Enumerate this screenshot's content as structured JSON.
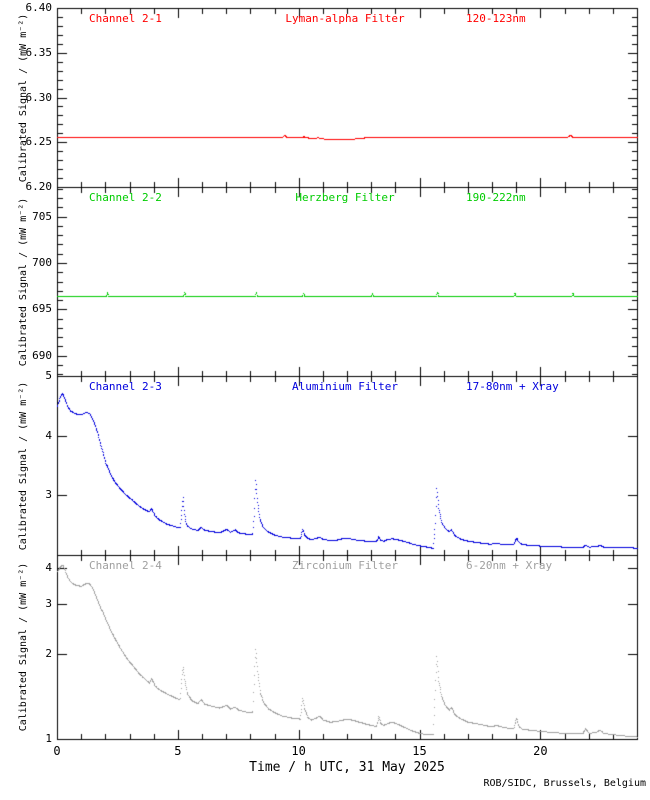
{
  "page": {
    "background": "#ffffff",
    "axis_color": "#000000"
  },
  "credit": "ROB/SIDC, Brussels, Belgium",
  "chart_data": {
    "type": "line",
    "x": {
      "label": "Time / h UTC, 31 May 2025",
      "lim": [
        0,
        24
      ],
      "major_ticks": [
        0,
        5,
        10,
        15,
        20
      ],
      "major_tick_labels": [
        "0",
        "5",
        "10",
        "15",
        "20"
      ],
      "minor_step": 1,
      "grid": false
    },
    "panels": [
      {
        "channel": "Channel 2-1",
        "filter": "Lyman-alpha Filter",
        "band": "120-123nm",
        "color": "#ff0000",
        "ylabel": "Calibrated Signal / (mW m⁻²)",
        "scale": "linear",
        "ylim": [
          6.2,
          6.4
        ],
        "major_ticks": [
          6.2,
          6.25,
          6.3,
          6.35,
          6.4
        ],
        "major_tick_labels": [
          "6.20",
          "6.25",
          "6.30",
          "6.35",
          "6.40"
        ],
        "minor_step": 0.01,
        "series": [
          [
            0,
            6.256
          ],
          [
            9.3,
            6.256
          ],
          [
            9.4,
            6.258
          ],
          [
            9.5,
            6.256
          ],
          [
            9.8,
            6.2555
          ],
          [
            10.2,
            6.2565
          ],
          [
            10.5,
            6.2545
          ],
          [
            10.8,
            6.2555
          ],
          [
            11.05,
            6.254
          ],
          [
            11.3,
            6.2535
          ],
          [
            11.6,
            6.254
          ],
          [
            11.9,
            6.2535
          ],
          [
            12.2,
            6.254
          ],
          [
            12.5,
            6.2545
          ],
          [
            12.75,
            6.2555
          ],
          [
            13.0,
            6.256
          ],
          [
            17.0,
            6.256
          ],
          [
            21.1,
            6.256
          ],
          [
            21.22,
            6.2585
          ],
          [
            21.35,
            6.2555
          ],
          [
            21.5,
            6.256
          ],
          [
            24,
            6.256
          ]
        ]
      },
      {
        "channel": "Channel 2-2",
        "filter": "Herzberg Filter",
        "band": "190-222nm",
        "color": "#00cc00",
        "ylabel": "Calibrated Signal / (mW m⁻²)",
        "scale": "linear",
        "ylim": [
          687.8,
          708.2
        ],
        "major_ticks": [
          690,
          695,
          700,
          705
        ],
        "major_tick_labels": [
          "690",
          "695",
          "700",
          "705"
        ],
        "minor_step": 1,
        "series": [
          [
            0,
            696.45
          ],
          [
            2.02,
            696.45
          ],
          [
            2.07,
            696.85
          ],
          [
            2.12,
            696.45
          ],
          [
            5.22,
            696.45
          ],
          [
            5.27,
            696.85
          ],
          [
            5.32,
            696.45
          ],
          [
            8.18,
            696.45
          ],
          [
            8.23,
            696.9
          ],
          [
            8.28,
            696.45
          ],
          [
            10.13,
            696.45
          ],
          [
            10.18,
            696.8
          ],
          [
            10.23,
            696.45
          ],
          [
            12.98,
            696.45
          ],
          [
            13.03,
            696.8
          ],
          [
            13.08,
            696.45
          ],
          [
            15.68,
            696.45
          ],
          [
            15.73,
            696.9
          ],
          [
            15.78,
            696.45
          ],
          [
            18.88,
            696.45
          ],
          [
            18.93,
            696.8
          ],
          [
            18.98,
            696.45
          ],
          [
            21.28,
            696.45
          ],
          [
            21.33,
            696.8
          ],
          [
            21.38,
            696.45
          ],
          [
            24,
            696.45
          ]
        ]
      },
      {
        "channel": "Channel 2-3",
        "filter": "Aluminium Filter",
        "band": "17-80nm + Xray",
        "color": "#0000dd",
        "ylabel": "Calibrated Signal / (mW m⁻²)",
        "scale": "linear",
        "ylim": [
          2,
          5
        ],
        "major_ticks": [
          3,
          4,
          5
        ],
        "major_tick_labels": [
          "3",
          "4",
          "5"
        ],
        "minor_step": 0,
        "series": [
          [
            0,
            4.5
          ],
          [
            0.12,
            4.65
          ],
          [
            0.2,
            4.72
          ],
          [
            0.3,
            4.63
          ],
          [
            0.42,
            4.5
          ],
          [
            0.55,
            4.42
          ],
          [
            0.7,
            4.38
          ],
          [
            0.9,
            4.36
          ],
          [
            1.05,
            4.37
          ],
          [
            1.2,
            4.4
          ],
          [
            1.35,
            4.37
          ],
          [
            1.5,
            4.25
          ],
          [
            1.65,
            4.08
          ],
          [
            1.8,
            3.85
          ],
          [
            2.0,
            3.55
          ],
          [
            2.2,
            3.35
          ],
          [
            2.4,
            3.22
          ],
          [
            2.6,
            3.12
          ],
          [
            2.8,
            3.03
          ],
          [
            3.0,
            2.96
          ],
          [
            3.2,
            2.89
          ],
          [
            3.4,
            2.82
          ],
          [
            3.6,
            2.77
          ],
          [
            3.8,
            2.73
          ],
          [
            3.9,
            2.78
          ],
          [
            4.05,
            2.66
          ],
          [
            4.2,
            2.6
          ],
          [
            4.5,
            2.53
          ],
          [
            4.8,
            2.49
          ],
          [
            5.08,
            2.46
          ],
          [
            5.14,
            2.7
          ],
          [
            5.2,
            2.98
          ],
          [
            5.26,
            2.7
          ],
          [
            5.34,
            2.52
          ],
          [
            5.5,
            2.45
          ],
          [
            5.8,
            2.42
          ],
          [
            5.95,
            2.47
          ],
          [
            6.1,
            2.42
          ],
          [
            6.4,
            2.4
          ],
          [
            6.7,
            2.38
          ],
          [
            7.0,
            2.44
          ],
          [
            7.15,
            2.39
          ],
          [
            7.35,
            2.43
          ],
          [
            7.5,
            2.38
          ],
          [
            7.8,
            2.36
          ],
          [
            8.08,
            2.35
          ],
          [
            8.14,
            2.7
          ],
          [
            8.2,
            3.26
          ],
          [
            8.28,
            2.9
          ],
          [
            8.38,
            2.6
          ],
          [
            8.5,
            2.48
          ],
          [
            8.7,
            2.4
          ],
          [
            9.0,
            2.34
          ],
          [
            9.3,
            2.31
          ],
          [
            9.7,
            2.29
          ],
          [
            10.05,
            2.28
          ],
          [
            10.1,
            2.35
          ],
          [
            10.15,
            2.44
          ],
          [
            10.22,
            2.35
          ],
          [
            10.3,
            2.3
          ],
          [
            10.45,
            2.27
          ],
          [
            10.7,
            2.28
          ],
          [
            10.85,
            2.31
          ],
          [
            11.0,
            2.27
          ],
          [
            11.3,
            2.25
          ],
          [
            11.6,
            2.26
          ],
          [
            11.8,
            2.28
          ],
          [
            12.0,
            2.29
          ],
          [
            12.2,
            2.27
          ],
          [
            12.5,
            2.25
          ],
          [
            12.8,
            2.24
          ],
          [
            13.2,
            2.23
          ],
          [
            13.26,
            2.28
          ],
          [
            13.3,
            2.32
          ],
          [
            13.36,
            2.26
          ],
          [
            13.5,
            2.24
          ],
          [
            13.7,
            2.27
          ],
          [
            13.85,
            2.28
          ],
          [
            14.1,
            2.26
          ],
          [
            14.4,
            2.23
          ],
          [
            14.7,
            2.19
          ],
          [
            15.0,
            2.16
          ],
          [
            15.3,
            2.14
          ],
          [
            15.55,
            2.12
          ],
          [
            15.63,
            2.5
          ],
          [
            15.7,
            3.12
          ],
          [
            15.78,
            2.8
          ],
          [
            15.9,
            2.55
          ],
          [
            16.05,
            2.45
          ],
          [
            16.2,
            2.4
          ],
          [
            16.3,
            2.43
          ],
          [
            16.45,
            2.33
          ],
          [
            16.7,
            2.27
          ],
          [
            17.0,
            2.24
          ],
          [
            17.5,
            2.21
          ],
          [
            17.9,
            2.19
          ],
          [
            18.2,
            2.2
          ],
          [
            18.5,
            2.18
          ],
          [
            18.88,
            2.18
          ],
          [
            18.94,
            2.24
          ],
          [
            19.0,
            2.29
          ],
          [
            19.08,
            2.23
          ],
          [
            19.2,
            2.19
          ],
          [
            19.5,
            2.17
          ],
          [
            19.9,
            2.16
          ],
          [
            20.4,
            2.15
          ],
          [
            21.0,
            2.14
          ],
          [
            21.5,
            2.13
          ],
          [
            21.75,
            2.14
          ],
          [
            21.85,
            2.17
          ],
          [
            22.0,
            2.14
          ],
          [
            22.3,
            2.15
          ],
          [
            22.45,
            2.17
          ],
          [
            22.6,
            2.14
          ],
          [
            23.0,
            2.13
          ],
          [
            23.4,
            2.14
          ],
          [
            24,
            2.12
          ]
        ]
      },
      {
        "channel": "Channel 2-4",
        "filter": "Zirconium Filter",
        "band": "6-20nm + Xray",
        "color": "#a0a0a0",
        "ylabel": "Calibrated Signal / (mW m⁻²)",
        "scale": "log",
        "ylim": [
          1,
          4.45
        ],
        "major_ticks": [
          1,
          2,
          3,
          4
        ],
        "major_tick_labels": [
          "1",
          "2",
          "3",
          "4"
        ],
        "minor_step": 0,
        "series": [
          [
            0,
            3.9
          ],
          [
            0.12,
            4.05
          ],
          [
            0.22,
            4.12
          ],
          [
            0.32,
            3.95
          ],
          [
            0.45,
            3.7
          ],
          [
            0.6,
            3.55
          ],
          [
            0.8,
            3.48
          ],
          [
            1.0,
            3.47
          ],
          [
            1.15,
            3.53
          ],
          [
            1.3,
            3.55
          ],
          [
            1.45,
            3.42
          ],
          [
            1.6,
            3.2
          ],
          [
            1.8,
            2.9
          ],
          [
            2.0,
            2.65
          ],
          [
            2.2,
            2.42
          ],
          [
            2.4,
            2.25
          ],
          [
            2.6,
            2.1
          ],
          [
            2.8,
            1.97
          ],
          [
            3.0,
            1.87
          ],
          [
            3.2,
            1.78
          ],
          [
            3.4,
            1.7
          ],
          [
            3.6,
            1.64
          ],
          [
            3.8,
            1.58
          ],
          [
            3.9,
            1.64
          ],
          [
            4.05,
            1.54
          ],
          [
            4.2,
            1.5
          ],
          [
            4.5,
            1.45
          ],
          [
            4.8,
            1.41
          ],
          [
            5.08,
            1.38
          ],
          [
            5.14,
            1.6
          ],
          [
            5.2,
            1.8
          ],
          [
            5.28,
            1.6
          ],
          [
            5.38,
            1.45
          ],
          [
            5.55,
            1.37
          ],
          [
            5.8,
            1.34
          ],
          [
            5.95,
            1.38
          ],
          [
            6.1,
            1.33
          ],
          [
            6.4,
            1.31
          ],
          [
            6.7,
            1.29
          ],
          [
            7.0,
            1.32
          ],
          [
            7.15,
            1.28
          ],
          [
            7.35,
            1.3
          ],
          [
            7.5,
            1.27
          ],
          [
            7.8,
            1.25
          ],
          [
            8.08,
            1.24
          ],
          [
            8.14,
            1.6
          ],
          [
            8.2,
            2.07
          ],
          [
            8.28,
            1.75
          ],
          [
            8.4,
            1.45
          ],
          [
            8.55,
            1.34
          ],
          [
            8.75,
            1.28
          ],
          [
            9.0,
            1.24
          ],
          [
            9.3,
            1.21
          ],
          [
            9.7,
            1.19
          ],
          [
            10.05,
            1.18
          ],
          [
            10.1,
            1.28
          ],
          [
            10.15,
            1.4
          ],
          [
            10.22,
            1.28
          ],
          [
            10.35,
            1.2
          ],
          [
            10.5,
            1.17
          ],
          [
            10.7,
            1.19
          ],
          [
            10.85,
            1.21
          ],
          [
            11.0,
            1.17
          ],
          [
            11.3,
            1.15
          ],
          [
            11.6,
            1.16
          ],
          [
            11.8,
            1.17
          ],
          [
            12.0,
            1.18
          ],
          [
            12.2,
            1.17
          ],
          [
            12.5,
            1.15
          ],
          [
            12.8,
            1.13
          ],
          [
            13.2,
            1.11
          ],
          [
            13.26,
            1.16
          ],
          [
            13.3,
            1.21
          ],
          [
            13.38,
            1.14
          ],
          [
            13.5,
            1.12
          ],
          [
            13.7,
            1.14
          ],
          [
            13.85,
            1.15
          ],
          [
            14.1,
            1.13
          ],
          [
            14.4,
            1.1
          ],
          [
            14.7,
            1.07
          ],
          [
            15.0,
            1.05
          ],
          [
            15.3,
            1.04
          ],
          [
            15.55,
            1.04
          ],
          [
            15.62,
            1.4
          ],
          [
            15.7,
            1.96
          ],
          [
            15.78,
            1.6
          ],
          [
            15.9,
            1.42
          ],
          [
            16.05,
            1.32
          ],
          [
            16.2,
            1.27
          ],
          [
            16.3,
            1.3
          ],
          [
            16.45,
            1.22
          ],
          [
            16.7,
            1.18
          ],
          [
            17.0,
            1.15
          ],
          [
            17.5,
            1.13
          ],
          [
            17.9,
            1.11
          ],
          [
            18.2,
            1.12
          ],
          [
            18.5,
            1.1
          ],
          [
            18.88,
            1.09
          ],
          [
            18.94,
            1.14
          ],
          [
            19.0,
            1.19
          ],
          [
            19.08,
            1.12
          ],
          [
            19.2,
            1.09
          ],
          [
            19.5,
            1.08
          ],
          [
            19.9,
            1.07
          ],
          [
            20.4,
            1.06
          ],
          [
            21.0,
            1.05
          ],
          [
            21.5,
            1.05
          ],
          [
            21.75,
            1.05
          ],
          [
            21.85,
            1.09
          ],
          [
            22.0,
            1.05
          ],
          [
            22.3,
            1.06
          ],
          [
            22.45,
            1.08
          ],
          [
            22.6,
            1.05
          ],
          [
            23.0,
            1.04
          ],
          [
            23.4,
            1.03
          ],
          [
            24,
            1.02
          ]
        ]
      }
    ]
  }
}
